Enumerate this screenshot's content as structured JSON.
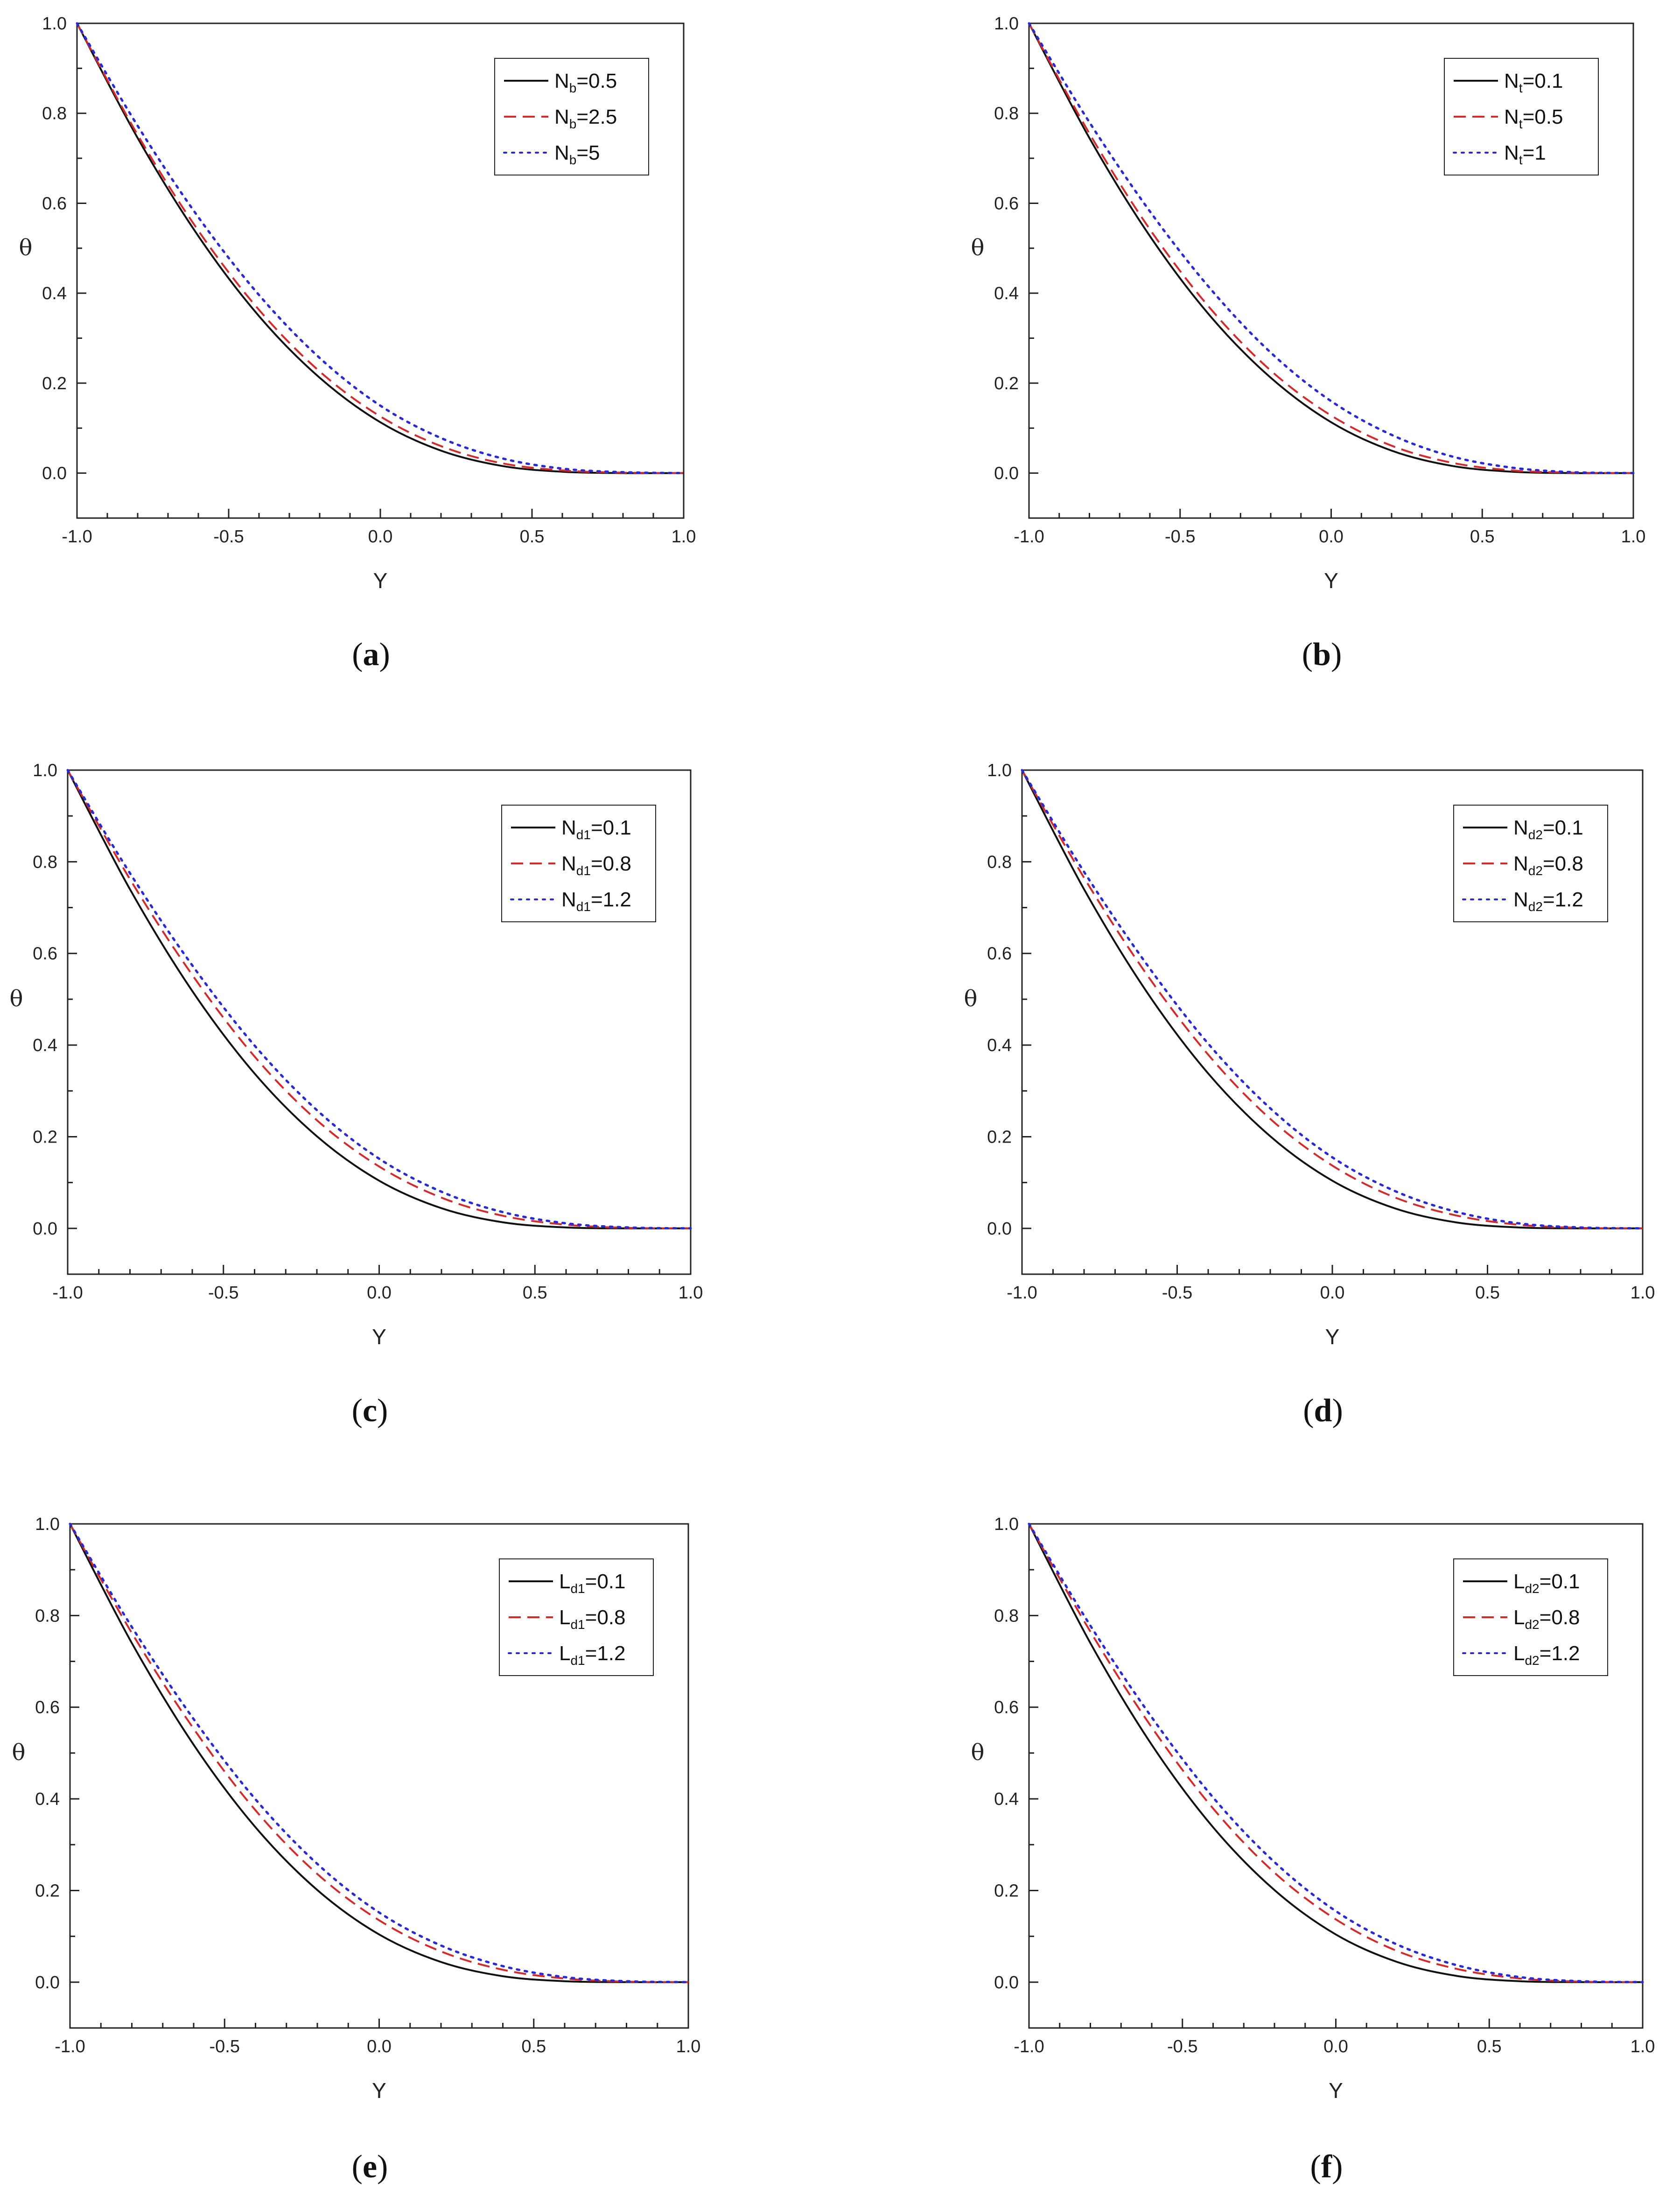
{
  "colors": {
    "series_1": "#111111",
    "series_2": "#d42a2a",
    "series_3": "#2a2ad4"
  },
  "chart_data": [
    {
      "type": "line",
      "caption_letter": "a",
      "caption": "(a)",
      "xlabel": "Y",
      "ylabel": "θ",
      "xlim": [
        -1.0,
        1.0
      ],
      "ylim": [
        -0.1,
        1.0
      ],
      "xticks": [
        "-1.0",
        "-0.5",
        "0.0",
        "0.5",
        "1.0"
      ],
      "yticks": [
        "0.0",
        "0.2",
        "0.4",
        "0.6",
        "0.8",
        "1.0"
      ],
      "legend_position": "top-right",
      "grid": false,
      "x": [
        -1.0,
        -0.8,
        -0.6,
        -0.4,
        -0.2,
        0.0,
        0.2,
        0.4,
        0.6,
        0.8,
        1.0
      ],
      "series": [
        {
          "main": "N",
          "sub": "b",
          "value": "=0.5",
          "style": "solid",
          "values": [
            1.0,
            0.745,
            0.527,
            0.349,
            0.212,
            0.113,
            0.05,
            0.016,
            0.003,
            0.0,
            0.0
          ]
        },
        {
          "main": "N",
          "sub": "b",
          "value": "=2.5",
          "style": "dashed",
          "values": [
            1.0,
            0.752,
            0.539,
            0.363,
            0.226,
            0.126,
            0.06,
            0.022,
            0.006,
            0.001,
            0.0
          ]
        },
        {
          "main": "N",
          "sub": "b",
          "value": "=5",
          "style": "dotted",
          "values": [
            1.0,
            0.772,
            0.569,
            0.396,
            0.256,
            0.15,
            0.078,
            0.033,
            0.01,
            0.002,
            0.0
          ]
        }
      ]
    },
    {
      "type": "line",
      "caption_letter": "b",
      "caption": "(b)",
      "xlabel": "Y",
      "ylabel": "θ",
      "xlim": [
        -1.0,
        1.0
      ],
      "ylim": [
        -0.1,
        1.0
      ],
      "xticks": [
        "-1.0",
        "-0.5",
        "0.0",
        "0.5",
        "1.0"
      ],
      "yticks": [
        "0.0",
        "0.2",
        "0.4",
        "0.6",
        "0.8",
        "1.0"
      ],
      "legend_position": "top-right",
      "grid": false,
      "x": [
        -1.0,
        -0.8,
        -0.6,
        -0.4,
        -0.2,
        0.0,
        0.2,
        0.4,
        0.6,
        0.8,
        1.0
      ],
      "series": [
        {
          "main": "N",
          "sub": "t",
          "value": "=0.1",
          "style": "solid",
          "values": [
            1.0,
            0.745,
            0.527,
            0.349,
            0.212,
            0.113,
            0.05,
            0.016,
            0.003,
            0.0,
            0.0
          ]
        },
        {
          "main": "N",
          "sub": "t",
          "value": "=0.5",
          "style": "dashed",
          "values": [
            1.0,
            0.755,
            0.542,
            0.366,
            0.228,
            0.128,
            0.061,
            0.023,
            0.006,
            0.001,
            0.0
          ]
        },
        {
          "main": "N",
          "sub": "t",
          "value": "=1",
          "style": "dotted",
          "values": [
            1.0,
            0.78,
            0.582,
            0.41,
            0.268,
            0.16,
            0.085,
            0.037,
            0.012,
            0.002,
            0.0
          ]
        }
      ]
    },
    {
      "type": "line",
      "caption_letter": "c",
      "caption": "(c)",
      "xlabel": "Y",
      "ylabel": "θ",
      "xlim": [
        -1.0,
        1.0
      ],
      "ylim": [
        -0.1,
        1.0
      ],
      "xticks": [
        "-1.0",
        "-0.5",
        "0.0",
        "0.5",
        "1.0"
      ],
      "yticks": [
        "0.0",
        "0.2",
        "0.4",
        "0.6",
        "0.8",
        "1.0"
      ],
      "legend_position": "top-right",
      "grid": false,
      "x": [
        -1.0,
        -0.8,
        -0.6,
        -0.4,
        -0.2,
        0.0,
        0.2,
        0.4,
        0.6,
        0.8,
        1.0
      ],
      "series": [
        {
          "main": "N",
          "sub": "d1",
          "value": "=0.1",
          "style": "solid",
          "values": [
            1.0,
            0.74,
            0.518,
            0.338,
            0.201,
            0.104,
            0.044,
            0.013,
            0.002,
            0.0,
            0.0
          ]
        },
        {
          "main": "N",
          "sub": "d1",
          "value": "=0.8",
          "style": "dashed",
          "values": [
            1.0,
            0.762,
            0.553,
            0.375,
            0.236,
            0.135,
            0.067,
            0.027,
            0.008,
            0.001,
            0.0
          ]
        },
        {
          "main": "N",
          "sub": "d1",
          "value": "=1.2",
          "style": "dotted",
          "values": [
            1.0,
            0.775,
            0.574,
            0.399,
            0.258,
            0.152,
            0.08,
            0.035,
            0.011,
            0.002,
            0.0
          ]
        }
      ]
    },
    {
      "type": "line",
      "caption_letter": "d",
      "caption": "(d)",
      "xlabel": "Y",
      "ylabel": "θ",
      "xlim": [
        -1.0,
        1.0
      ],
      "ylim": [
        -0.1,
        1.0
      ],
      "xticks": [
        "-1.0",
        "-0.5",
        "0.0",
        "0.5",
        "1.0"
      ],
      "yticks": [
        "0.0",
        "0.2",
        "0.4",
        "0.6",
        "0.8",
        "1.0"
      ],
      "legend_position": "top-right",
      "grid": false,
      "x": [
        -1.0,
        -0.8,
        -0.6,
        -0.4,
        -0.2,
        0.0,
        0.2,
        0.4,
        0.6,
        0.8,
        1.0
      ],
      "series": [
        {
          "main": "N",
          "sub": "d2",
          "value": "=0.1",
          "style": "solid",
          "values": [
            1.0,
            0.74,
            0.518,
            0.338,
            0.201,
            0.104,
            0.044,
            0.013,
            0.002,
            0.0,
            0.0
          ]
        },
        {
          "main": "N",
          "sub": "d2",
          "value": "=0.8",
          "style": "dashed",
          "values": [
            1.0,
            0.765,
            0.556,
            0.379,
            0.239,
            0.137,
            0.068,
            0.028,
            0.008,
            0.001,
            0.0
          ]
        },
        {
          "main": "N",
          "sub": "d2",
          "value": "=1.2",
          "style": "dotted",
          "values": [
            1.0,
            0.778,
            0.578,
            0.403,
            0.262,
            0.155,
            0.082,
            0.036,
            0.011,
            0.002,
            0.0
          ]
        }
      ]
    },
    {
      "type": "line",
      "caption_letter": "e",
      "caption": "(e)",
      "xlabel": "Y",
      "ylabel": "θ",
      "xlim": [
        -1.0,
        1.0
      ],
      "ylim": [
        -0.1,
        1.0
      ],
      "xticks": [
        "-1.0",
        "-0.5",
        "0.0",
        "0.5",
        "1.0"
      ],
      "yticks": [
        "0.0",
        "0.2",
        "0.4",
        "0.6",
        "0.8",
        "1.0"
      ],
      "legend_position": "top-right",
      "grid": false,
      "x": [
        -1.0,
        -0.8,
        -0.6,
        -0.4,
        -0.2,
        0.0,
        0.2,
        0.4,
        0.6,
        0.8,
        1.0
      ],
      "series": [
        {
          "main": "L",
          "sub": "d1",
          "value": "=0.1",
          "style": "solid",
          "values": [
            1.0,
            0.74,
            0.518,
            0.338,
            0.201,
            0.104,
            0.044,
            0.013,
            0.002,
            0.0,
            0.0
          ]
        },
        {
          "main": "L",
          "sub": "d1",
          "value": "=0.8",
          "style": "dashed",
          "values": [
            1.0,
            0.762,
            0.553,
            0.375,
            0.236,
            0.135,
            0.067,
            0.027,
            0.008,
            0.001,
            0.0
          ]
        },
        {
          "main": "L",
          "sub": "d1",
          "value": "=1.2",
          "style": "dotted",
          "values": [
            1.0,
            0.775,
            0.574,
            0.399,
            0.258,
            0.152,
            0.08,
            0.035,
            0.011,
            0.002,
            0.0
          ]
        }
      ]
    },
    {
      "type": "line",
      "caption_letter": "f",
      "caption": "(f)",
      "xlabel": "Y",
      "ylabel": "θ",
      "xlim": [
        -1.0,
        1.0
      ],
      "ylim": [
        -0.1,
        1.0
      ],
      "xticks": [
        "-1.0",
        "-0.5",
        "0.0",
        "0.5",
        "1.0"
      ],
      "yticks": [
        "0.0",
        "0.2",
        "0.4",
        "0.6",
        "0.8",
        "1.0"
      ],
      "legend_position": "top-right",
      "grid": false,
      "x": [
        -1.0,
        -0.8,
        -0.6,
        -0.4,
        -0.2,
        0.0,
        0.2,
        0.4,
        0.6,
        0.8,
        1.0
      ],
      "series": [
        {
          "main": "L",
          "sub": "d2",
          "value": "=0.1",
          "style": "solid",
          "values": [
            1.0,
            0.74,
            0.518,
            0.338,
            0.201,
            0.104,
            0.044,
            0.013,
            0.002,
            0.0,
            0.0
          ]
        },
        {
          "main": "L",
          "sub": "d2",
          "value": "=0.8",
          "style": "dashed",
          "values": [
            1.0,
            0.765,
            0.556,
            0.379,
            0.239,
            0.137,
            0.068,
            0.028,
            0.008,
            0.001,
            0.0
          ]
        },
        {
          "main": "L",
          "sub": "d2",
          "value": "=1.2",
          "style": "dotted",
          "values": [
            1.0,
            0.778,
            0.578,
            0.403,
            0.262,
            0.155,
            0.082,
            0.036,
            0.011,
            0.002,
            0.0
          ]
        }
      ]
    }
  ]
}
